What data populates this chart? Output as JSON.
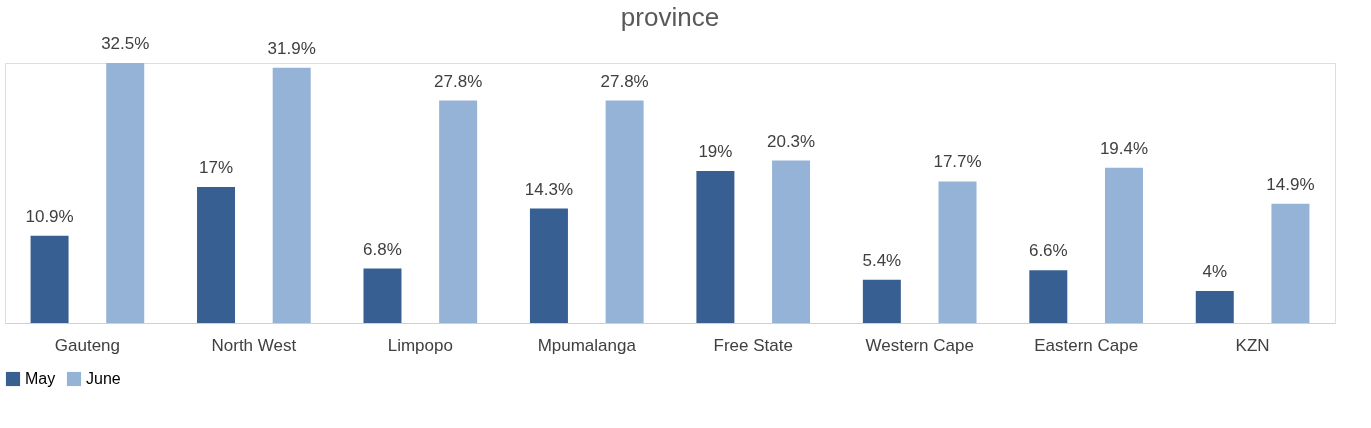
{
  "chart_data": {
    "type": "bar",
    "title": "province",
    "categories": [
      "Gauteng",
      "North West",
      "Limpopo",
      "Mpumalanga",
      "Free State",
      "Western Cape",
      "Eastern Cape",
      "KZN"
    ],
    "series": [
      {
        "name": "May",
        "color": "#375f92",
        "values": [
          10.9,
          17,
          6.8,
          14.3,
          19,
          5.4,
          6.6,
          4
        ],
        "value_labels": [
          "10.9%",
          "17%",
          "6.8%",
          "14.3%",
          "19%",
          "5.4%",
          "6.6%",
          "4%"
        ]
      },
      {
        "name": "June",
        "color": "#95b3d7",
        "values": [
          32.5,
          31.9,
          27.8,
          27.8,
          20.3,
          17.7,
          19.4,
          14.9
        ],
        "value_labels": [
          "32.5%",
          "31.9%",
          "27.8%",
          "27.8%",
          "20.3%",
          "17.7%",
          "19.4%",
          "14.9%"
        ]
      }
    ],
    "legend": "bottom",
    "grid": false
  }
}
